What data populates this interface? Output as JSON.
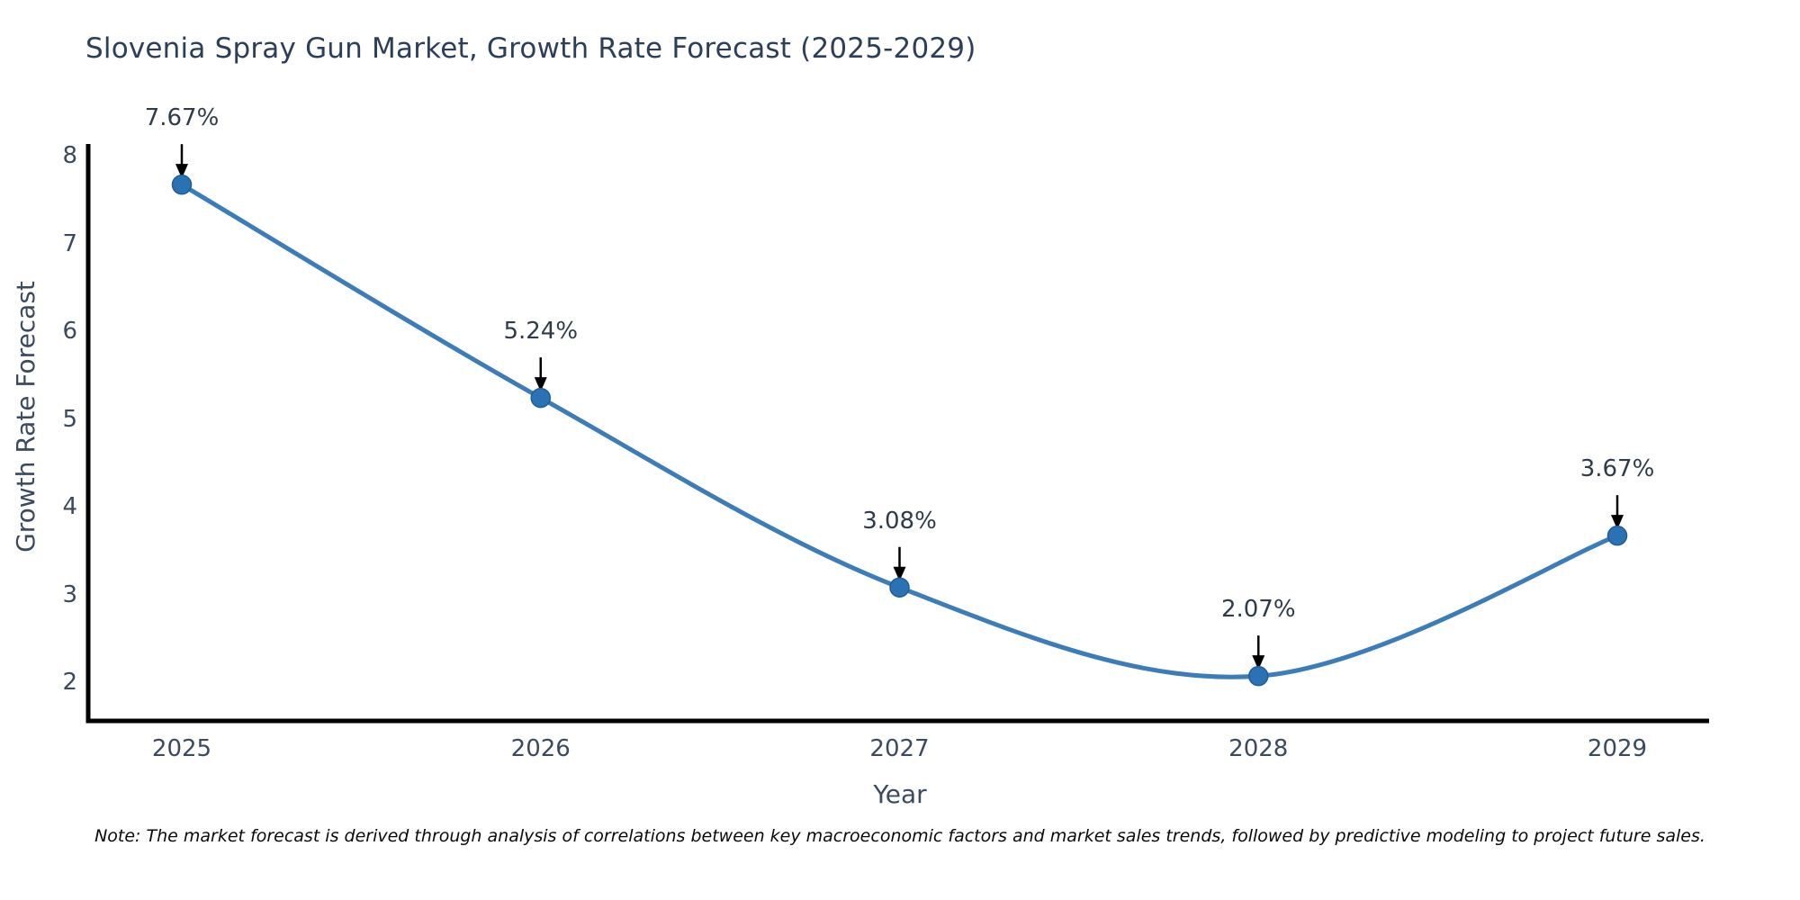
{
  "note": "Note: The market forecast is derived through analysis of correlations between key macroeconomic factors and market sales trends, followed by predictive modeling to project future sales.",
  "chart_data": {
    "type": "line",
    "title": "Slovenia Spray Gun Market, Growth Rate Forecast (2025-2029)",
    "xlabel": "Year",
    "ylabel": "Growth Rate Forecast",
    "x": [
      2025,
      2026,
      2027,
      2028,
      2029
    ],
    "values": [
      7.67,
      5.24,
      3.08,
      2.07,
      3.67
    ],
    "point_labels": [
      "7.67%",
      "5.24%",
      "3.08%",
      "2.07%",
      "3.67%"
    ],
    "xticks": [
      "2025",
      "2026",
      "2027",
      "2028",
      "2029"
    ],
    "yticks": [
      2,
      3,
      4,
      5,
      6,
      7,
      8
    ],
    "xlim": [
      2024.74,
      2029.26
    ],
    "ylim": [
      1.56,
      8.13
    ],
    "grid": false,
    "legend": "none",
    "line_shape": "spline",
    "line_color": "#3c7db9",
    "marker_color": "#2b72b4",
    "marker_edge_color": "#205d97",
    "axis_color": "#000000",
    "annotation_arrow_color": "#000000",
    "title_color": "#2b3e5a",
    "tick_color": "#3b4a5e",
    "note_color": "#0a0a0a",
    "background_color": "#ffffff"
  }
}
